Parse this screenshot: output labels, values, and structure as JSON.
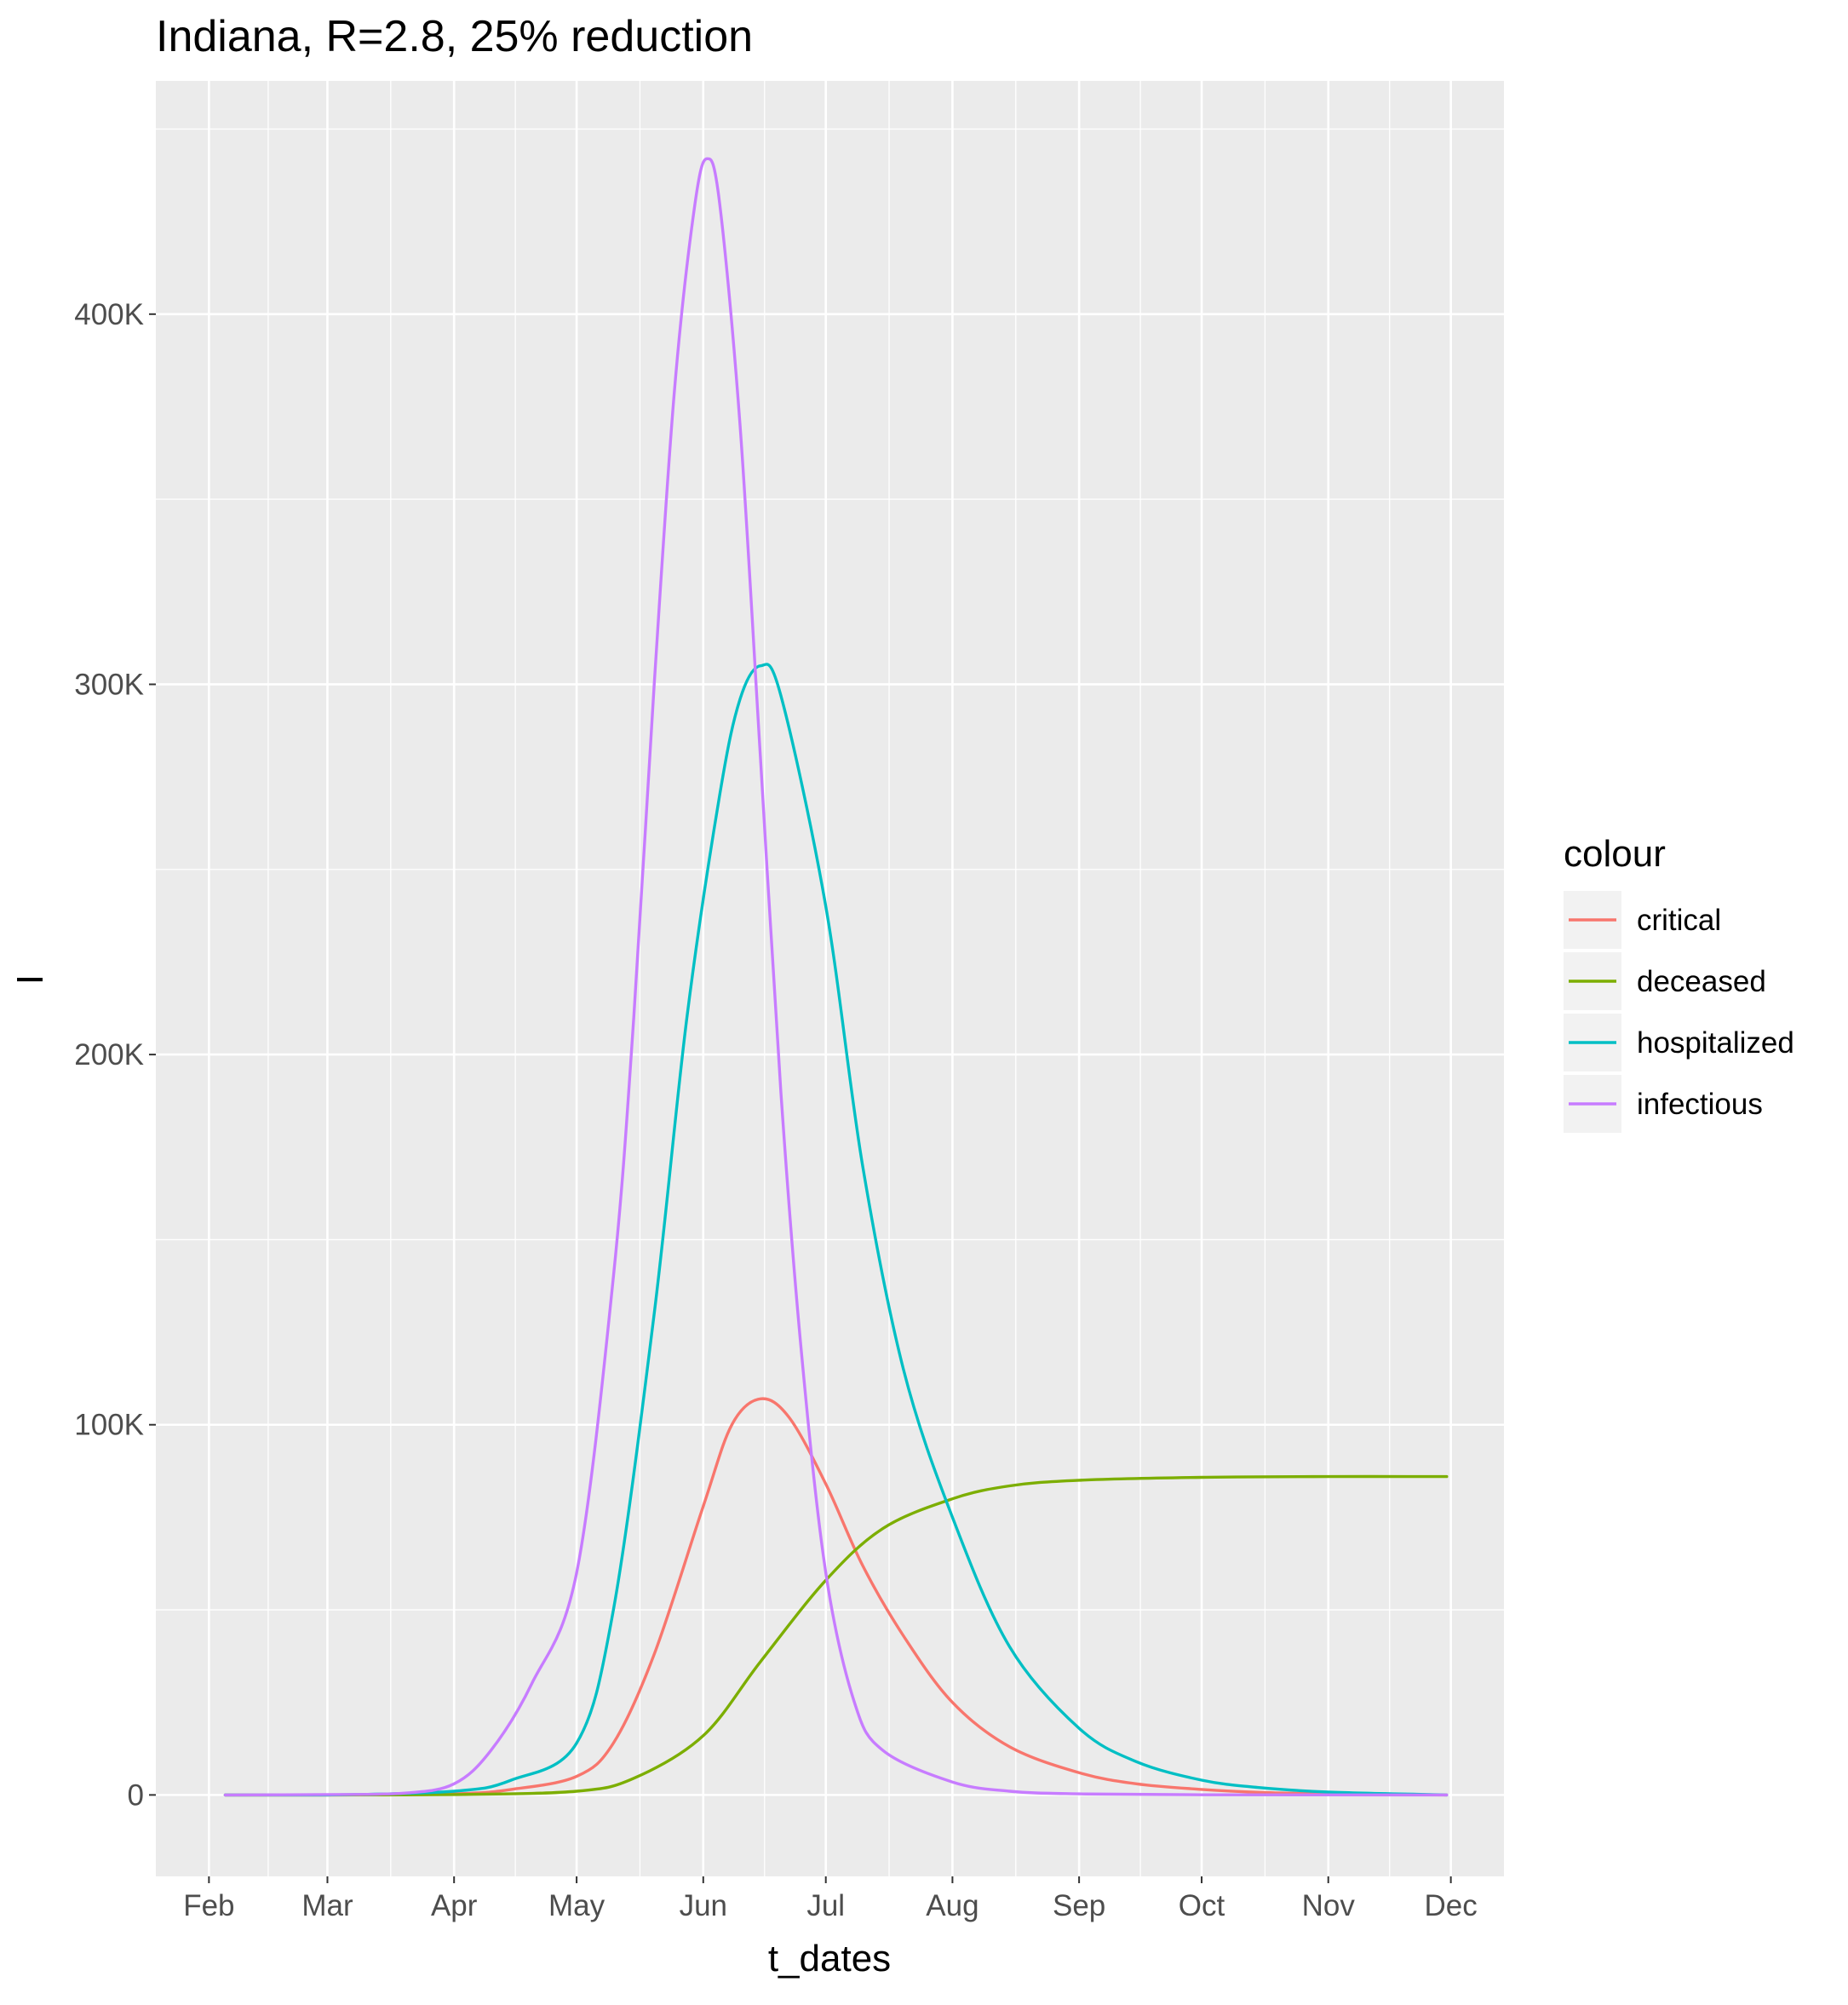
{
  "chart_data": {
    "type": "line",
    "title": "Indiana, R=2.8, 25% reduction",
    "xlabel": "t_dates",
    "ylabel": "I",
    "x_tick_labels": [
      "Feb",
      "Mar",
      "Apr",
      "May",
      "Jun",
      "Jul",
      "Aug",
      "Sep",
      "Oct",
      "Nov",
      "Dec"
    ],
    "x_ticks": [
      "2020-02-01",
      "2020-03-01",
      "2020-04-01",
      "2020-05-01",
      "2020-06-01",
      "2020-07-01",
      "2020-08-01",
      "2020-09-01",
      "2020-10-01",
      "2020-11-01",
      "2020-12-01"
    ],
    "xlim": [
      "2020-01-19",
      "2020-12-14"
    ],
    "y_ticks": [
      0,
      100000,
      200000,
      300000,
      400000
    ],
    "y_tick_labels": [
      "0",
      "100K",
      "200K",
      "300K",
      "400K"
    ],
    "ylim": [
      -22000,
      463000
    ],
    "grid": true,
    "legend_title": "colour",
    "legend_position": "right",
    "series": [
      {
        "name": "critical",
        "color": "#F8766D",
        "points": [
          [
            "2020-02-05",
            0
          ],
          [
            "2020-03-01",
            0
          ],
          [
            "2020-04-01",
            300
          ],
          [
            "2020-04-15",
            1500
          ],
          [
            "2020-05-01",
            5000
          ],
          [
            "2020-05-10",
            14000
          ],
          [
            "2020-05-20",
            38000
          ],
          [
            "2020-06-01",
            78000
          ],
          [
            "2020-06-08",
            100000
          ],
          [
            "2020-06-15",
            107000
          ],
          [
            "2020-06-22",
            102000
          ],
          [
            "2020-07-01",
            84000
          ],
          [
            "2020-07-10",
            62000
          ],
          [
            "2020-07-20",
            43000
          ],
          [
            "2020-08-01",
            25000
          ],
          [
            "2020-08-15",
            13000
          ],
          [
            "2020-09-01",
            6000
          ],
          [
            "2020-09-15",
            3000
          ],
          [
            "2020-10-01",
            1500
          ],
          [
            "2020-10-15",
            700
          ],
          [
            "2020-11-01",
            300
          ],
          [
            "2020-11-15",
            100
          ],
          [
            "2020-11-30",
            0
          ]
        ]
      },
      {
        "name": "deceased",
        "color": "#7CAE00",
        "points": [
          [
            "2020-02-05",
            0
          ],
          [
            "2020-03-01",
            0
          ],
          [
            "2020-04-01",
            100
          ],
          [
            "2020-05-01",
            1000
          ],
          [
            "2020-05-15",
            4500
          ],
          [
            "2020-06-01",
            16000
          ],
          [
            "2020-06-15",
            36000
          ],
          [
            "2020-07-01",
            58000
          ],
          [
            "2020-07-15",
            72000
          ],
          [
            "2020-08-01",
            80000
          ],
          [
            "2020-08-15",
            83500
          ],
          [
            "2020-09-01",
            85000
          ],
          [
            "2020-10-01",
            85800
          ],
          [
            "2020-11-01",
            86000
          ],
          [
            "2020-11-30",
            86000
          ]
        ]
      },
      {
        "name": "hospitalized",
        "color": "#00BFC4",
        "points": [
          [
            "2020-02-05",
            0
          ],
          [
            "2020-03-01",
            0
          ],
          [
            "2020-04-01",
            1000
          ],
          [
            "2020-04-15",
            4000
          ],
          [
            "2020-05-01",
            14000
          ],
          [
            "2020-05-10",
            50000
          ],
          [
            "2020-05-20",
            130000
          ],
          [
            "2020-05-28",
            210000
          ],
          [
            "2020-06-05",
            270000
          ],
          [
            "2020-06-10",
            296000
          ],
          [
            "2020-06-15",
            305000
          ],
          [
            "2020-06-20",
            297000
          ],
          [
            "2020-07-01",
            240000
          ],
          [
            "2020-07-10",
            170000
          ],
          [
            "2020-07-20",
            115000
          ],
          [
            "2020-08-01",
            75000
          ],
          [
            "2020-08-15",
            40000
          ],
          [
            "2020-09-01",
            18000
          ],
          [
            "2020-09-15",
            9000
          ],
          [
            "2020-10-01",
            4000
          ],
          [
            "2020-10-15",
            2000
          ],
          [
            "2020-11-01",
            800
          ],
          [
            "2020-11-30",
            0
          ]
        ]
      },
      {
        "name": "infectious",
        "color": "#C77CFF",
        "points": [
          [
            "2020-02-05",
            0
          ],
          [
            "2020-03-01",
            100
          ],
          [
            "2020-03-20",
            500
          ],
          [
            "2020-04-01",
            3000
          ],
          [
            "2020-04-10",
            12000
          ],
          [
            "2020-04-20",
            30000
          ],
          [
            "2020-05-01",
            60000
          ],
          [
            "2020-05-10",
            140000
          ],
          [
            "2020-05-15",
            210000
          ],
          [
            "2020-05-20",
            300000
          ],
          [
            "2020-05-25",
            380000
          ],
          [
            "2020-05-30",
            430000
          ],
          [
            "2020-06-02",
            442000
          ],
          [
            "2020-06-05",
            430000
          ],
          [
            "2020-06-10",
            370000
          ],
          [
            "2020-06-15",
            280000
          ],
          [
            "2020-06-20",
            190000
          ],
          [
            "2020-06-25",
            120000
          ],
          [
            "2020-07-01",
            60000
          ],
          [
            "2020-07-08",
            25000
          ],
          [
            "2020-07-15",
            12000
          ],
          [
            "2020-08-01",
            3500
          ],
          [
            "2020-08-15",
            1000
          ],
          [
            "2020-09-01",
            300
          ],
          [
            "2020-10-01",
            50
          ],
          [
            "2020-11-30",
            0
          ]
        ]
      }
    ]
  }
}
